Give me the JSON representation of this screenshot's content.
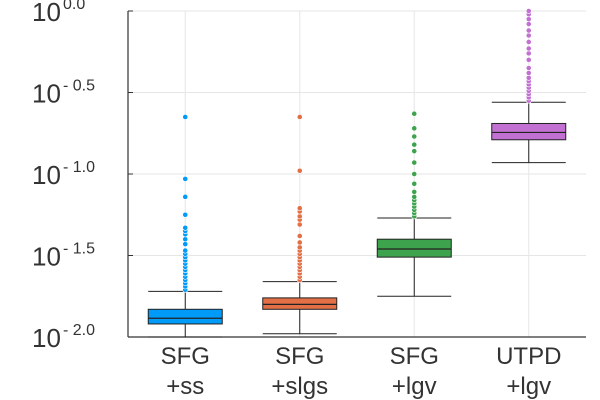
{
  "chart_data": {
    "type": "box",
    "title": "",
    "xlabel": "",
    "ylabel": "",
    "yscale": "log10",
    "ylim_log10": [
      -2.0,
      0.0
    ],
    "grid": true,
    "legend": "none",
    "yticks": [
      {
        "base": "10",
        "exp": "- 2.0",
        "value": -2.0
      },
      {
        "base": "10",
        "exp": "- 1.5",
        "value": -1.5
      },
      {
        "base": "10",
        "exp": "- 1.0",
        "value": -1.0
      },
      {
        "base": "10",
        "exp": "- 0.5",
        "value": -0.5
      },
      {
        "base": "10",
        "exp": "0.0",
        "value": 0.0
      }
    ],
    "series": [
      {
        "name": "SFG +ss",
        "label_lines": [
          "SFG",
          "+ss"
        ],
        "color": "#009af9",
        "whisker_low": -2.0,
        "q1": -1.92,
        "median": -1.885,
        "q3": -1.83,
        "whisker_high": -1.72,
        "outliers": [
          -1.71,
          -1.69,
          -1.67,
          -1.65,
          -1.63,
          -1.61,
          -1.59,
          -1.57,
          -1.55,
          -1.53,
          -1.51,
          -1.49,
          -1.47,
          -1.43,
          -1.4,
          -1.37,
          -1.35,
          -1.33,
          -1.25,
          -1.14,
          -1.03,
          -0.65
        ]
      },
      {
        "name": "SFG +slgs",
        "label_lines": [
          "SFG",
          "+slgs"
        ],
        "color": "#e26f46",
        "whisker_low": -1.98,
        "q1": -1.83,
        "median": -1.8,
        "q3": -1.76,
        "whisker_high": -1.66,
        "outliers": [
          -1.65,
          -1.63,
          -1.61,
          -1.59,
          -1.57,
          -1.55,
          -1.53,
          -1.51,
          -1.49,
          -1.47,
          -1.45,
          -1.42,
          -1.38,
          -1.31,
          -1.28,
          -1.26,
          -1.23,
          -1.21,
          -0.98,
          -0.65
        ]
      },
      {
        "name": "SFG +lgv",
        "label_lines": [
          "SFG",
          "+lgv"
        ],
        "color": "#3da44d",
        "whisker_low": -1.75,
        "q1": -1.51,
        "median": -1.46,
        "q3": -1.4,
        "whisker_high": -1.27,
        "outliers": [
          -1.26,
          -1.24,
          -1.22,
          -1.2,
          -1.18,
          -1.16,
          -1.14,
          -1.11,
          -1.06,
          -1.0,
          -0.93,
          -0.86,
          -0.82,
          -0.77,
          -0.72,
          -0.63
        ]
      },
      {
        "name": "UTPD +lgv",
        "label_lines": [
          "UTPD",
          "+lgv"
        ],
        "color": "#c271d2",
        "whisker_low": -0.93,
        "q1": -0.79,
        "median": -0.745,
        "q3": -0.69,
        "whisker_high": -0.56,
        "outliers": [
          -0.55,
          -0.53,
          -0.51,
          -0.49,
          -0.47,
          -0.45,
          -0.43,
          -0.41,
          -0.38,
          -0.35,
          -0.3,
          -0.26,
          -0.23,
          -0.19,
          -0.15,
          -0.12,
          -0.08,
          -0.05,
          -0.02,
          0.0
        ]
      }
    ]
  }
}
